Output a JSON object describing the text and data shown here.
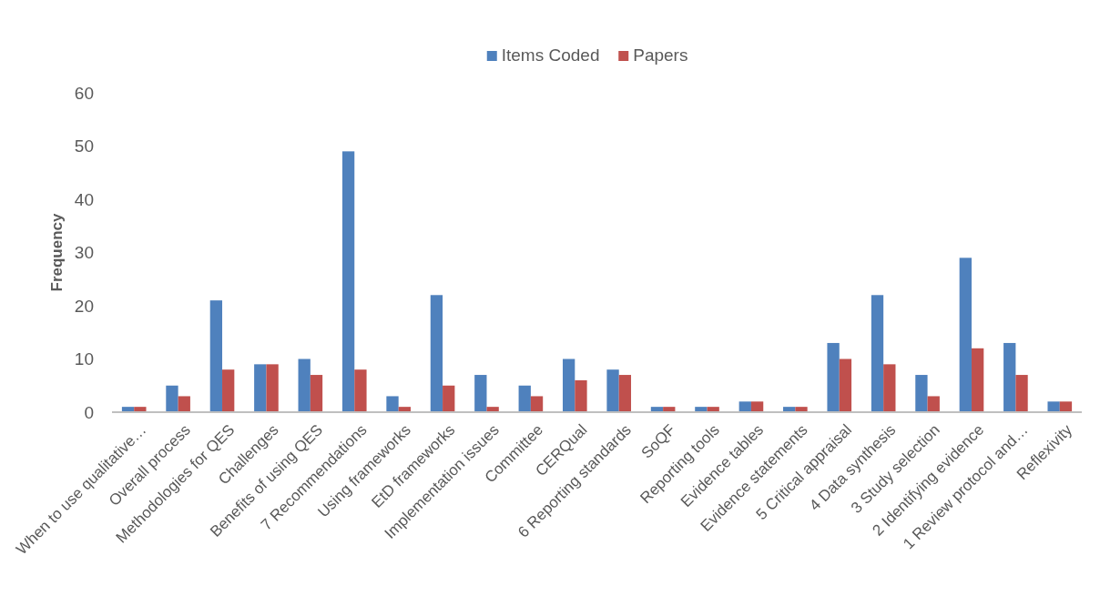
{
  "chart_data": {
    "type": "bar",
    "ylabel": "Frequency",
    "categories": [
      "When to use qualitative…",
      "Overall process",
      "Methodologies for QES",
      "Challenges",
      "Benefits of using QES",
      "7 Recommendations",
      "Using frameworks",
      "EtD frameworks",
      "Implementation issues",
      "Committee",
      "CERQual",
      "6 Reporting standards",
      "SoQF",
      "Reporting tools",
      "Evidence tables",
      "Evidence statements",
      "5 Critical appraisal",
      "4 Data synthesis",
      "3 Study selection",
      "2 Identifying evidence",
      "1 Review protocol and…",
      "Reflexivity"
    ],
    "series": [
      {
        "name": "Items Coded",
        "color": "#4f81bd",
        "values": [
          1,
          5,
          21,
          9,
          10,
          49,
          3,
          22,
          7,
          5,
          10,
          8,
          1,
          1,
          2,
          1,
          13,
          22,
          7,
          29,
          13,
          2
        ]
      },
      {
        "name": "Papers",
        "color": "#c0504d",
        "values": [
          1,
          3,
          8,
          9,
          7,
          8,
          1,
          5,
          1,
          3,
          6,
          7,
          1,
          1,
          2,
          1,
          10,
          9,
          3,
          12,
          7,
          2
        ]
      }
    ],
    "ylim": [
      0,
      60
    ],
    "yticks": [
      0,
      10,
      20,
      30,
      40,
      50,
      60
    ],
    "grid": false,
    "legend": "top"
  }
}
